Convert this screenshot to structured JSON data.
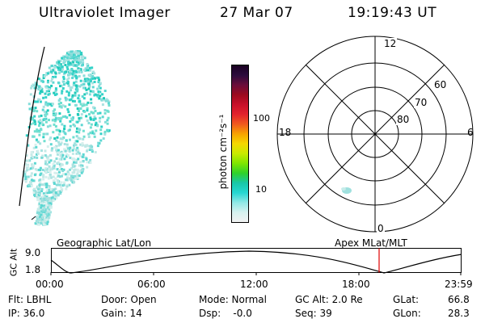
{
  "header": {
    "instrument": "Ultraviolet Imager",
    "date": "27 Mar 07",
    "time": "19:19:43 UT"
  },
  "colorbar": {
    "unit_label": "photon cm⁻²s⁻¹",
    "ticks": [
      "100",
      "10"
    ],
    "colors_top_to_bottom": [
      "#1a0022",
      "#2b0c3c",
      "#6a0d3a",
      "#9c0a1e",
      "#c8102a",
      "#e3232c",
      "#f05a1e",
      "#f7a400",
      "#f5d800",
      "#c8ea00",
      "#7fe600",
      "#2fd22a",
      "#19c7a8",
      "#26d7d2",
      "#8fe8e6",
      "#d6f2f0",
      "#f2f2f2"
    ]
  },
  "polar": {
    "labels": {
      "top": "12",
      "left": "18",
      "right": "6",
      "bottom": "0"
    },
    "lat_labels": [
      "60",
      "70",
      "80"
    ]
  },
  "timeline": {
    "axis_label": "GC Alt",
    "ymax": "9.0",
    "ymin": "1.8",
    "left_title": "Geographic Lat/Lon",
    "right_title": "Apex MLat/MLT",
    "xticks": [
      "00:00",
      "06:00",
      "12:00",
      "18:00",
      "23:59"
    ],
    "marker_color": "#e00000"
  },
  "info": {
    "flt": "Flt: LBHL",
    "ip": "IP: 36.0",
    "door": "Door: Open",
    "gain": "Gain: 14",
    "mode": "Mode: Normal",
    "dsp": "Dsp:    -0.0",
    "gcalt": "GC Alt: 2.0 Re",
    "seq": "Seq: 39",
    "glat_label": "GLat:",
    "glat_value": "66.8",
    "glon_label": "GLon:",
    "glon_value": "28.3"
  }
}
